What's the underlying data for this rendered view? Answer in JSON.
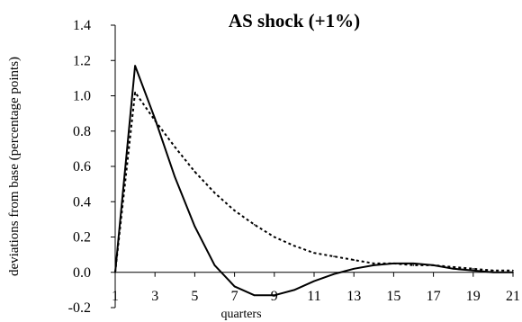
{
  "chart_data": {
    "type": "line",
    "title": "AS shock (+1%)",
    "xlabel": "quarters",
    "ylabel": "deviations from base (percentage points)",
    "ylim": [
      -0.2,
      1.4
    ],
    "xlim": [
      1,
      21
    ],
    "y_ticks": [
      -0.2,
      0.0,
      0.2,
      0.4,
      0.6,
      0.8,
      1.0,
      1.2,
      1.4
    ],
    "y_tick_labels": [
      "-0.2",
      "0.0",
      "0.2",
      "0.4",
      "0.6",
      "0.8",
      "1.0",
      "1.2",
      "1.4"
    ],
    "x_ticks": [
      1,
      3,
      5,
      7,
      9,
      11,
      13,
      15,
      17,
      19,
      21
    ],
    "x_tick_labels": [
      "1",
      "3",
      "5",
      "7",
      "9",
      "11",
      "13",
      "15",
      "17",
      "19",
      "21"
    ],
    "grid": false,
    "colors": {
      "series": "#000000",
      "axis": "#000000"
    },
    "series": [
      {
        "style": "solid",
        "x": [
          1,
          2,
          3,
          4,
          5,
          6,
          7,
          8,
          9,
          10,
          11,
          12,
          13,
          14,
          15,
          16,
          17,
          18,
          19,
          20,
          21
        ],
        "values": [
          0.0,
          1.17,
          0.87,
          0.54,
          0.26,
          0.04,
          -0.08,
          -0.13,
          -0.13,
          -0.1,
          -0.05,
          -0.01,
          0.02,
          0.04,
          0.05,
          0.05,
          0.04,
          0.02,
          0.01,
          0.0,
          0.0
        ]
      },
      {
        "style": "dotted",
        "x": [
          1,
          2,
          3,
          4,
          5,
          6,
          7,
          8,
          9,
          10,
          11,
          12,
          13,
          14,
          15,
          16,
          17,
          18,
          19,
          20,
          21
        ],
        "values": [
          0.0,
          1.02,
          0.86,
          0.71,
          0.57,
          0.45,
          0.35,
          0.27,
          0.2,
          0.15,
          0.11,
          0.09,
          0.07,
          0.05,
          0.05,
          0.04,
          0.04,
          0.03,
          0.02,
          0.01,
          0.01
        ]
      }
    ]
  }
}
